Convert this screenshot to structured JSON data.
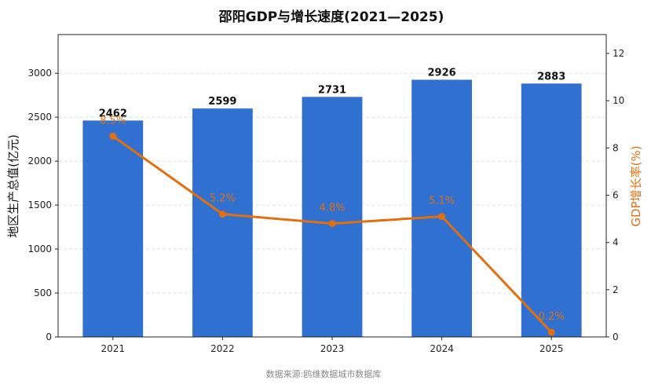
{
  "chart_data": {
    "type": "bar+line",
    "title": "邵阳GDP与增长速度(2021—2025)",
    "categories": [
      "2021",
      "2022",
      "2023",
      "2024",
      "2025"
    ],
    "series": [
      {
        "name": "地区生产总值(亿元)",
        "type": "bar",
        "axis": "left",
        "values": [
          2462,
          2599,
          2731,
          2926,
          2883
        ],
        "color": "#3070d0"
      },
      {
        "name": "GDP增长率(%)",
        "type": "line",
        "axis": "right",
        "values": [
          8.5,
          5.2,
          4.8,
          5.1,
          0.2
        ],
        "color": "#e07010",
        "labels": [
          "8.5%",
          "5.2%",
          "4.8%",
          "5.1%",
          "0.2%"
        ]
      }
    ],
    "ylabel_left": "地区生产总值(亿元)",
    "ylabel_right": "GDP增长率(%)",
    "ylim_left": [
      0,
      3440
    ],
    "ylim_right": [
      0,
      12.8
    ],
    "yticks_left": [
      0,
      500,
      1000,
      1500,
      2000,
      2500,
      3000
    ],
    "yticks_right": [
      0,
      2,
      4,
      6,
      8,
      10,
      12
    ],
    "grid": true,
    "source": "数据来源:鸥维数据城市数据库"
  }
}
